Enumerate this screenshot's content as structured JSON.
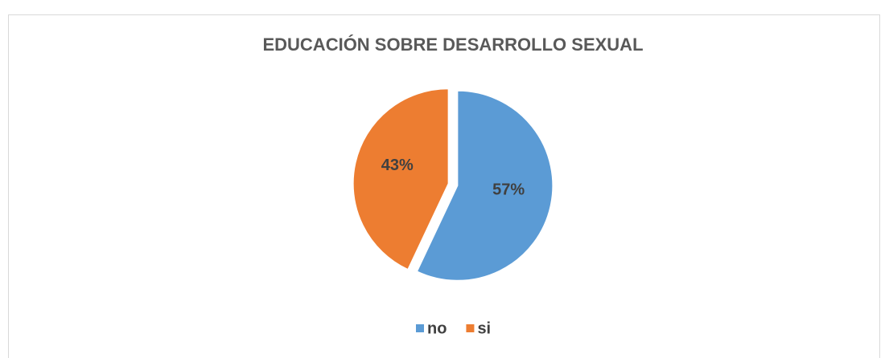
{
  "chart_data": {
    "type": "pie",
    "title": "EDUCACIÓN SOBRE DESARROLLO SEXUAL",
    "categories": [
      "no",
      "si"
    ],
    "values": [
      57,
      43
    ],
    "value_labels": [
      "57%",
      "43%"
    ],
    "colors": [
      "#5b9bd5",
      "#ed7d31"
    ],
    "legend": "bottom"
  }
}
